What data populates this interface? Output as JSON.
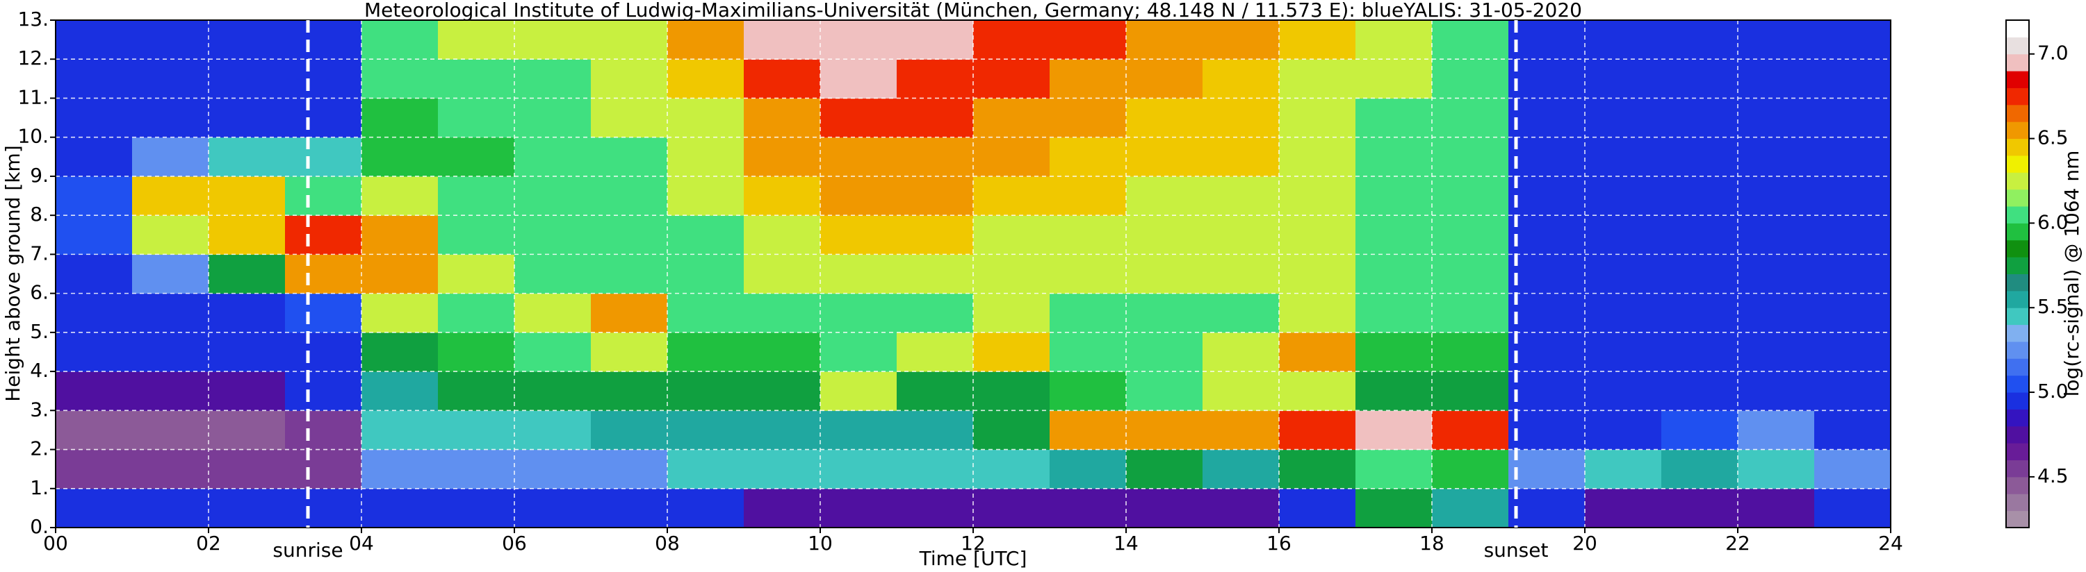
{
  "chart_data": {
    "type": "heatmap",
    "title": "Meteorological Institute of Ludwig-Maximilians-Universität (München, Germany; 48.148 N / 11.573 E):    blueYALIS: 31-05-2020",
    "x_label": "Time [UTC]",
    "y_label": "Height above ground [km]",
    "colorbar_label": "log(rc-signal) @ 1064 nm",
    "x": [
      0.5,
      1.5,
      2.5,
      3.5,
      4.5,
      5.5,
      6.5,
      7.5,
      8.5,
      9.5,
      10.5,
      11.5,
      12.5,
      13.5,
      14.5,
      15.5,
      16.5,
      17.5,
      18.5,
      19.5,
      20.5,
      21.5,
      22.5,
      23.5
    ],
    "y": [
      0.5,
      1.5,
      2.5,
      3.5,
      4.5,
      5.5,
      6.5,
      7.5,
      8.5,
      9.5,
      10.5,
      11.5,
      12.5
    ],
    "z": [
      [
        5.0,
        5.0,
        5.0,
        5.0,
        4.9,
        4.9,
        4.9,
        4.9,
        5.0,
        4.8,
        4.8,
        4.8,
        4.8,
        4.8,
        4.8,
        4.8,
        4.9,
        5.8,
        5.6,
        5.0,
        4.8,
        4.7,
        4.8,
        4.9
      ],
      [
        4.6,
        4.6,
        4.6,
        4.6,
        5.2,
        5.3,
        5.3,
        5.3,
        5.4,
        5.4,
        5.4,
        5.5,
        5.5,
        5.6,
        5.7,
        5.6,
        5.7,
        6.0,
        5.9,
        5.2,
        5.5,
        5.6,
        5.4,
        5.3
      ],
      [
        4.5,
        4.5,
        4.5,
        4.6,
        5.5,
        5.5,
        5.5,
        5.6,
        5.6,
        5.6,
        5.6,
        5.6,
        5.7,
        6.5,
        6.6,
        6.6,
        6.8,
        6.9,
        6.8,
        5.0,
        5.0,
        5.1,
        5.2,
        5.0
      ],
      [
        4.8,
        4.8,
        4.8,
        4.9,
        5.6,
        5.7,
        5.7,
        5.7,
        5.7,
        5.8,
        6.2,
        5.8,
        5.8,
        5.9,
        6.0,
        6.3,
        6.3,
        5.7,
        5.8,
        4.9,
        4.9,
        4.9,
        4.9,
        4.9
      ],
      [
        4.9,
        4.9,
        4.9,
        5.0,
        5.8,
        5.9,
        6.0,
        6.3,
        5.9,
        5.9,
        6.1,
        6.3,
        6.4,
        6.0,
        6.0,
        6.2,
        6.5,
        5.9,
        5.9,
        5.0,
        4.9,
        4.9,
        4.9,
        4.9
      ],
      [
        4.9,
        4.9,
        4.9,
        5.1,
        6.2,
        6.1,
        6.3,
        6.6,
        6.0,
        6.0,
        6.0,
        6.1,
        6.3,
        6.1,
        6.1,
        6.1,
        6.2,
        6.0,
        6.0,
        5.0,
        4.9,
        4.9,
        4.9,
        4.9
      ],
      [
        5.0,
        5.2,
        5.8,
        6.5,
        6.6,
        6.2,
        6.1,
        6.1,
        6.1,
        6.2,
        6.3,
        6.3,
        6.2,
        6.2,
        6.2,
        6.2,
        6.2,
        6.1,
        6.0,
        5.0,
        4.9,
        4.9,
        4.9,
        4.9
      ],
      [
        5.1,
        6.2,
        6.4,
        6.7,
        6.6,
        6.1,
        6.1,
        6.1,
        6.1,
        6.3,
        6.4,
        6.4,
        6.3,
        6.3,
        6.3,
        6.3,
        6.3,
        6.1,
        6.0,
        5.0,
        4.9,
        4.9,
        4.9,
        4.9
      ],
      [
        5.1,
        6.4,
        6.4,
        6.0,
        6.3,
        6.0,
        6.0,
        6.1,
        6.2,
        6.4,
        6.5,
        6.5,
        6.4,
        6.4,
        6.3,
        6.3,
        6.3,
        6.1,
        6.0,
        5.0,
        4.9,
        4.9,
        4.9,
        4.9
      ],
      [
        5.0,
        5.3,
        5.5,
        5.4,
        5.9,
        5.9,
        6.0,
        6.1,
        6.2,
        6.5,
        6.6,
        6.6,
        6.5,
        6.4,
        6.4,
        6.4,
        6.3,
        6.1,
        6.0,
        5.0,
        4.9,
        4.9,
        4.9,
        4.9
      ],
      [
        4.9,
        4.9,
        4.9,
        5.0,
        5.9,
        6.0,
        6.1,
        6.2,
        6.3,
        6.6,
        6.8,
        6.7,
        6.6,
        6.5,
        6.4,
        6.4,
        6.3,
        6.1,
        6.0,
        5.0,
        4.9,
        4.9,
        4.9,
        4.9
      ],
      [
        4.9,
        4.9,
        4.9,
        5.0,
        6.0,
        6.1,
        6.1,
        6.2,
        6.4,
        6.8,
        6.9,
        6.8,
        6.7,
        6.6,
        6.5,
        6.4,
        6.3,
        6.2,
        6.0,
        5.0,
        4.9,
        4.9,
        4.9,
        4.9
      ],
      [
        4.9,
        4.9,
        4.9,
        5.0,
        6.1,
        6.2,
        6.2,
        6.3,
        6.5,
        6.9,
        7.0,
        6.9,
        6.8,
        6.7,
        6.6,
        6.5,
        6.4,
        6.3,
        6.1,
        5.0,
        4.9,
        4.9,
        4.9,
        4.9
      ]
    ],
    "xlim": [
      0,
      24
    ],
    "ylim": [
      0,
      13
    ],
    "xticks": [
      {
        "value": 0,
        "label": "00"
      },
      {
        "value": 2,
        "label": "02"
      },
      {
        "value": 4,
        "label": "04"
      },
      {
        "value": 6,
        "label": "06"
      },
      {
        "value": 8,
        "label": "08"
      },
      10,
      12,
      14,
      16,
      18,
      20,
      22,
      24
    ],
    "yticks": [
      {
        "value": 0,
        "label": "0."
      },
      {
        "value": 1,
        "label": "1."
      },
      {
        "value": 2,
        "label": "2."
      },
      {
        "value": 3,
        "label": "3."
      },
      {
        "value": 4,
        "label": "4."
      },
      {
        "value": 5,
        "label": "5."
      },
      {
        "value": 6,
        "label": "6."
      },
      {
        "value": 7,
        "label": "7."
      },
      {
        "value": 8,
        "label": "8."
      },
      {
        "value": 9,
        "label": "9."
      },
      {
        "value": 10,
        "label": "10."
      },
      {
        "value": 11,
        "label": "11."
      },
      {
        "value": 12,
        "label": "12."
      },
      {
        "value": 13,
        "label": "13."
      }
    ],
    "grid": true,
    "clim": [
      4.2,
      7.2
    ],
    "cticks": [
      4.5,
      {
        "value": 5,
        "label": "5.0"
      },
      5.5,
      {
        "value": 6,
        "label": "6.0"
      },
      6.5,
      {
        "value": 7,
        "label": "7.0"
      }
    ],
    "colors": [
      "#a890a8",
      "#9a78a0",
      "#8c5a98",
      "#7a3c96",
      "#681c98",
      "#5010a0",
      "#3414c0",
      "#1a30e0",
      "#2050f0",
      "#4070f0",
      "#6090f0",
      "#80b0f0",
      "#40c8c0",
      "#20a8a0",
      "#208c80",
      "#10a040",
      "#109010",
      "#20c040",
      "#40e080",
      "#90f060",
      "#c8f040",
      "#f0f000",
      "#f0c800",
      "#f09800",
      "#f06800",
      "#f02800",
      "#e00000",
      "#f0c0c0",
      "#e8e0e0",
      "#ffffff"
    ],
    "annotations": [
      {
        "text": "sunrise",
        "x": 3.3
      },
      {
        "text": "sunset",
        "x": 19.1
      }
    ]
  }
}
